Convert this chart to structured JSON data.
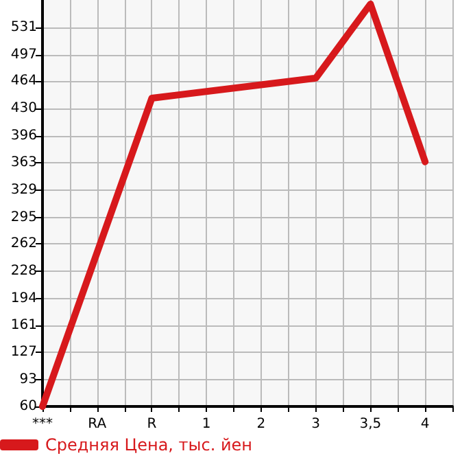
{
  "chart_data": {
    "type": "line",
    "categories": [
      "***",
      "RA",
      "R",
      "1",
      "2",
      "3",
      "3,5",
      "4"
    ],
    "series": [
      {
        "name": "Средняя Цена, тыс. йен",
        "color": "#d7191c",
        "values": [
          60,
          null,
          443,
          null,
          null,
          468,
          560,
          364
        ]
      }
    ],
    "ylim": [
      60,
      565
    ],
    "yticks": [
      60,
      93,
      127,
      161,
      194,
      228,
      262,
      295,
      329,
      363,
      396,
      430,
      464,
      497,
      531
    ],
    "grid": true,
    "legend": "bottom left",
    "marker": "none",
    "line_style": "solid"
  }
}
